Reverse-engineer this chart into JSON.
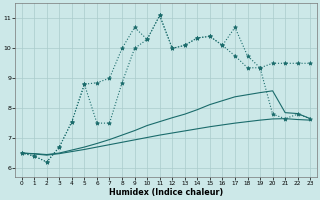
{
  "xlabel": "Humidex (Indice chaleur)",
  "bg_color": "#cce8e8",
  "line_color": "#1a6b6b",
  "xlim": [
    -0.5,
    23.5
  ],
  "ylim": [
    5.7,
    11.5
  ],
  "xticks": [
    0,
    1,
    2,
    3,
    4,
    5,
    6,
    7,
    8,
    9,
    10,
    11,
    12,
    13,
    14,
    15,
    16,
    17,
    18,
    19,
    20,
    21,
    22,
    23
  ],
  "yticks": [
    6,
    7,
    8,
    9,
    10,
    11
  ],
  "grid_color": "#aacccc",
  "s1_x": [
    0,
    1,
    2,
    3,
    4,
    5,
    6,
    7,
    8,
    9,
    10,
    11,
    12,
    13,
    14,
    15,
    16,
    17,
    18,
    19,
    20,
    21,
    22,
    23
  ],
  "s1_y": [
    6.5,
    6.4,
    6.2,
    6.7,
    7.55,
    8.8,
    8.85,
    9.0,
    10.0,
    10.7,
    10.3,
    11.1,
    10.0,
    10.1,
    10.35,
    10.4,
    10.1,
    10.7,
    9.75,
    9.35,
    9.5,
    9.5,
    9.5,
    9.5
  ],
  "s2_x": [
    0,
    1,
    2,
    3,
    4,
    5,
    6,
    7,
    8,
    9,
    10,
    11,
    12,
    13,
    14,
    15,
    16,
    17,
    18,
    19,
    20,
    21,
    22,
    23
  ],
  "s2_y": [
    6.5,
    6.4,
    6.2,
    6.7,
    7.55,
    8.8,
    7.5,
    7.5,
    8.85,
    10.0,
    10.3,
    11.1,
    10.0,
    10.1,
    10.35,
    10.4,
    10.1,
    9.75,
    9.35,
    9.35,
    7.8,
    7.65,
    7.8,
    7.65
  ],
  "s3_x": [
    0,
    1,
    2,
    3,
    4,
    5,
    6,
    7,
    8,
    9,
    10,
    11,
    12,
    13,
    14,
    15,
    16,
    17,
    18,
    19,
    20,
    21,
    22,
    23
  ],
  "s3_y": [
    6.5,
    6.48,
    6.45,
    6.5,
    6.6,
    6.7,
    6.82,
    6.95,
    7.1,
    7.25,
    7.42,
    7.55,
    7.68,
    7.8,
    7.95,
    8.12,
    8.25,
    8.38,
    8.45,
    8.52,
    8.58,
    7.85,
    7.82,
    7.65
  ],
  "s4_x": [
    0,
    1,
    2,
    3,
    4,
    5,
    6,
    7,
    8,
    9,
    10,
    11,
    12,
    13,
    14,
    15,
    16,
    17,
    18,
    19,
    20,
    21,
    22,
    23
  ],
  "s4_y": [
    6.5,
    6.47,
    6.43,
    6.48,
    6.55,
    6.62,
    6.7,
    6.78,
    6.86,
    6.94,
    7.02,
    7.1,
    7.17,
    7.24,
    7.31,
    7.38,
    7.44,
    7.5,
    7.55,
    7.6,
    7.64,
    7.65,
    7.62,
    7.6
  ]
}
